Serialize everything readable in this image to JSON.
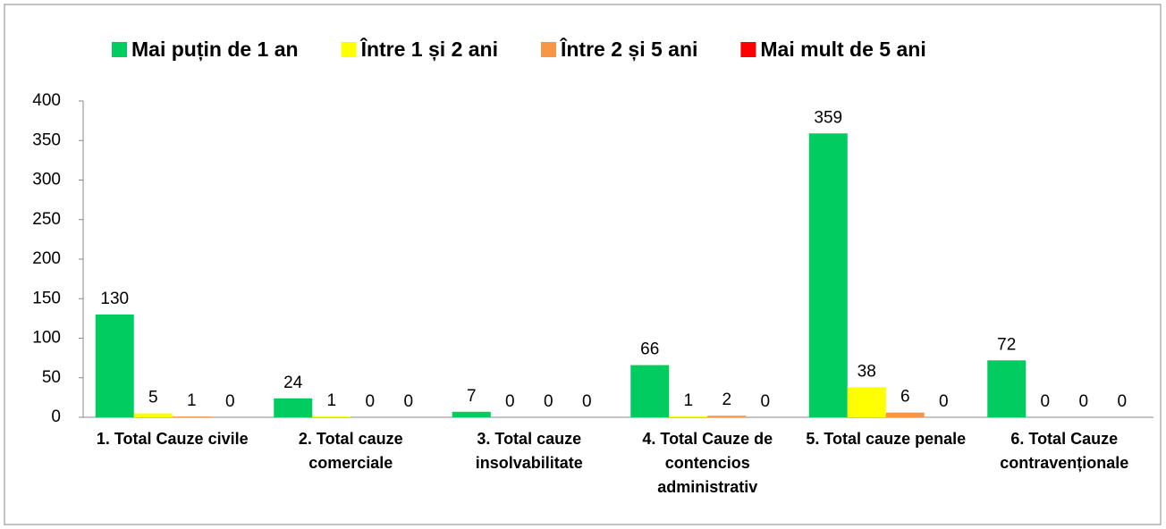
{
  "chart_data": {
    "type": "bar",
    "categories": [
      "1. Total Cauze civile",
      "2. Total cauze comerciale",
      "3. Total cauze insolvabilitate",
      "4. Total Cauze de contencios administrativ",
      "5. Total cauze penale",
      "6. Total Cauze contravenționale"
    ],
    "series": [
      {
        "name": "Mai puțin de 1 an",
        "color": "#00cc60",
        "values": [
          130,
          24,
          7,
          66,
          359,
          72
        ]
      },
      {
        "name": "Între 1 și 2 ani",
        "color": "#ffff00",
        "values": [
          5,
          1,
          0,
          1,
          38,
          0
        ]
      },
      {
        "name": "Între 2 și 5 ani",
        "color": "#f79646",
        "values": [
          1,
          0,
          0,
          2,
          6,
          0
        ]
      },
      {
        "name": "Mai mult de 5 ani",
        "color": "#ff0000",
        "values": [
          0,
          0,
          0,
          0,
          0,
          0
        ]
      }
    ],
    "ylim": [
      0,
      400
    ],
    "yticks": [
      0,
      50,
      100,
      150,
      200,
      250,
      300,
      350,
      400
    ],
    "grid": false,
    "legend": "top"
  }
}
